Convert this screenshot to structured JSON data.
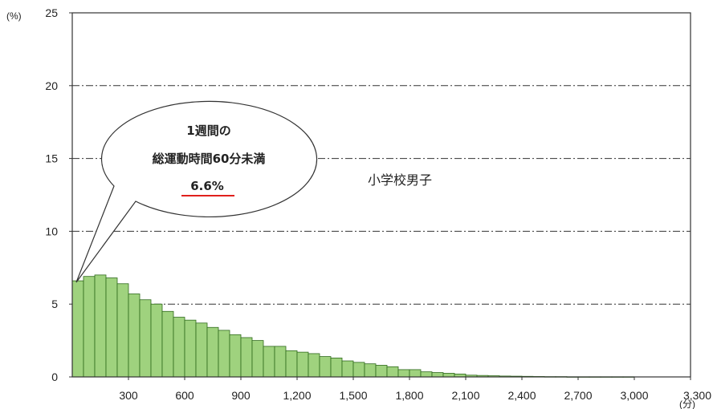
{
  "chart_data": {
    "type": "bar",
    "title": "",
    "ylabel": "(%)",
    "xlabel": "(分)",
    "xlim": [
      0,
      3300
    ],
    "ylim": [
      0,
      25
    ],
    "bin_width": 60,
    "grid": "horizontal dash-dot",
    "yticks": [
      0,
      5,
      10,
      15,
      20,
      25
    ],
    "xticks": [
      300,
      600,
      900,
      1200,
      1500,
      1800,
      2100,
      2400,
      2700,
      3000,
      3300
    ],
    "xtick_labels": [
      "300",
      "600",
      "900",
      "1,200",
      "1,500",
      "1,800",
      "2,100",
      "2,400",
      "2,700",
      "3,000",
      "3,300"
    ],
    "ytick_labels": [
      "0",
      "5",
      "10",
      "15",
      "20",
      "25"
    ],
    "series": [
      {
        "name": "小学校男子",
        "color": "#9fd27e",
        "edge_color": "#2f6a1c",
        "values": [
          6.6,
          6.9,
          7.0,
          6.8,
          6.4,
          5.7,
          5.3,
          5.0,
          4.5,
          4.1,
          3.9,
          3.7,
          3.4,
          3.2,
          2.9,
          2.7,
          2.5,
          2.1,
          2.1,
          1.8,
          1.7,
          1.6,
          1.4,
          1.3,
          1.1,
          1.0,
          0.9,
          0.8,
          0.7,
          0.5,
          0.5,
          0.35,
          0.3,
          0.25,
          0.2,
          0.12,
          0.1,
          0.08,
          0.06,
          0.05,
          0.04,
          0.03,
          0.02,
          0.02,
          0.01,
          0.01,
          0.01,
          0.01,
          0.01,
          0.01
        ]
      }
    ],
    "annotation": {
      "lines": [
        "1週間の",
        "総運動時間60分未満",
        "6.6%"
      ],
      "underline_color": "#e0201c"
    }
  }
}
